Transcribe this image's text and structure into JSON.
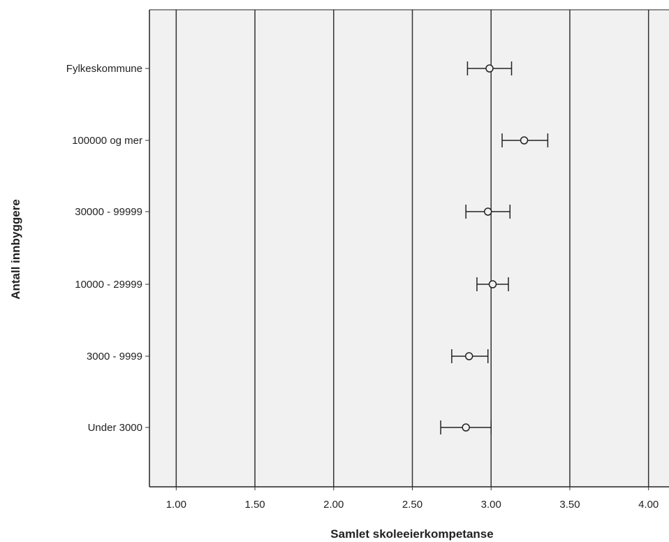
{
  "chart_data": {
    "type": "scatter",
    "subtype": "error-bar",
    "orientation": "horizontal",
    "xlabel": "Samlet skoleeierkompetanse",
    "ylabel": "Antall innbyggere",
    "xlim": [
      0.83,
      4.13
    ],
    "xticks": [
      "1.00",
      "1.50",
      "2.00",
      "2.50",
      "3.00",
      "3.50",
      "4.00"
    ],
    "xtick_values": [
      1.0,
      1.5,
      2.0,
      2.5,
      3.0,
      3.5,
      4.0
    ],
    "categories": [
      "Fylkeskommune",
      "100000 og mer",
      "30000 - 99999",
      "10000 - 29999",
      "3000 - 9999",
      "Under 3000"
    ],
    "values": [
      2.99,
      3.21,
      2.98,
      3.01,
      2.86,
      2.84
    ],
    "ci_low": [
      2.85,
      3.07,
      2.84,
      2.91,
      2.75,
      2.68
    ],
    "ci_high": [
      3.13,
      3.36,
      3.12,
      3.11,
      2.98,
      3.0
    ],
    "grid": "vertical",
    "plot_background": "#f0f1f0",
    "line_color": "#222222"
  }
}
